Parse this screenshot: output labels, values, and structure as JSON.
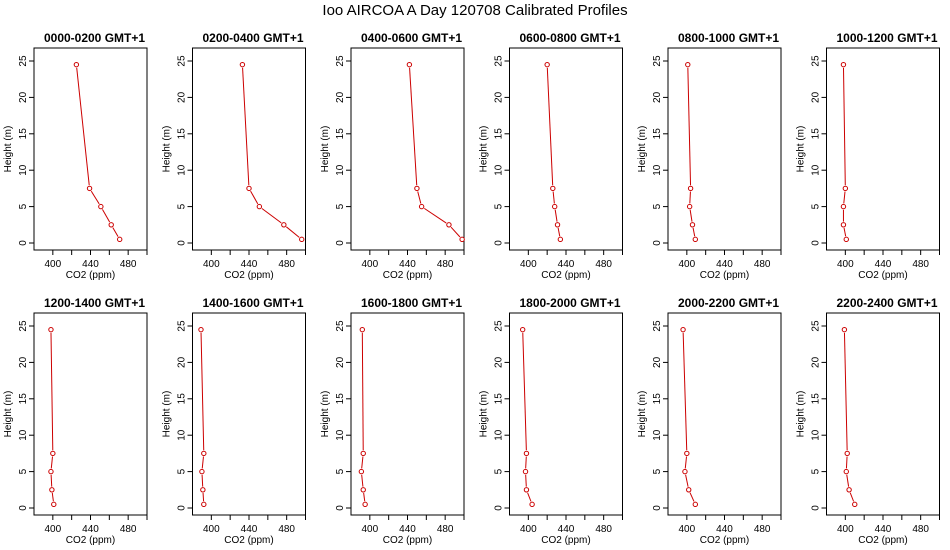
{
  "title": "Ioo AIRCOA A  Day 120708  Calibrated Profiles",
  "chart_data": {
    "type": "line",
    "xlabel": "CO2 (ppm)",
    "ylabel": "Height (m)",
    "xlim": [
      380,
      500
    ],
    "ylim": [
      0,
      25
    ],
    "xticks": [
      400,
      440,
      480
    ],
    "yticks": [
      0,
      5,
      10,
      15,
      20,
      25
    ],
    "grid": false,
    "color": "#cc0000",
    "panels": [
      {
        "title": "0000-0200 GMT+1",
        "points": [
          [
            471,
            0.5
          ],
          [
            462,
            2.5
          ],
          [
            451,
            5.0
          ],
          [
            439,
            7.5
          ],
          [
            425,
            24.5
          ]
        ]
      },
      {
        "title": "0200-0400 GMT+1",
        "points": [
          [
            496,
            0.5
          ],
          [
            477,
            2.5
          ],
          [
            451,
            5.0
          ],
          [
            440,
            7.5
          ],
          [
            433,
            24.5
          ]
        ]
      },
      {
        "title": "0400-0600 GMT+1",
        "points": [
          [
            498,
            0.5
          ],
          [
            484,
            2.5
          ],
          [
            455,
            5.0
          ],
          [
            450,
            7.5
          ],
          [
            442,
            24.5
          ]
        ]
      },
      {
        "title": "0600-0800 GMT+1",
        "points": [
          [
            434,
            0.5
          ],
          [
            431,
            2.5
          ],
          [
            428,
            5.0
          ],
          [
            426,
            7.5
          ],
          [
            420,
            24.5
          ]
        ]
      },
      {
        "title": "0800-1000 GMT+1",
        "points": [
          [
            409,
            0.5
          ],
          [
            406,
            2.5
          ],
          [
            403,
            5.0
          ],
          [
            404,
            7.5
          ],
          [
            401,
            24.5
          ]
        ]
      },
      {
        "title": "1000-1200 GMT+1",
        "points": [
          [
            401,
            0.5
          ],
          [
            398,
            2.5
          ],
          [
            398,
            5.0
          ],
          [
            400,
            7.5
          ],
          [
            398,
            24.5
          ]
        ]
      },
      {
        "title": "1200-1400 GMT+1",
        "points": [
          [
            401,
            0.5
          ],
          [
            399,
            2.5
          ],
          [
            398,
            5.0
          ],
          [
            400,
            7.5
          ],
          [
            398,
            24.5
          ]
        ]
      },
      {
        "title": "1400-1600 GMT+1",
        "points": [
          [
            392,
            0.5
          ],
          [
            391,
            2.5
          ],
          [
            390,
            5.0
          ],
          [
            392,
            7.5
          ],
          [
            389,
            24.5
          ]
        ]
      },
      {
        "title": "1600-1800 GMT+1",
        "points": [
          [
            395,
            0.5
          ],
          [
            393,
            2.5
          ],
          [
            391,
            5.0
          ],
          [
            393,
            7.5
          ],
          [
            392,
            24.5
          ]
        ]
      },
      {
        "title": "1800-2000 GMT+1",
        "points": [
          [
            404,
            0.5
          ],
          [
            398,
            2.5
          ],
          [
            397,
            5.0
          ],
          [
            398,
            7.5
          ],
          [
            394,
            24.5
          ]
        ]
      },
      {
        "title": "2000-2200 GMT+1",
        "points": [
          [
            409,
            0.5
          ],
          [
            402,
            2.5
          ],
          [
            398,
            5.0
          ],
          [
            400,
            7.5
          ],
          [
            396,
            24.5
          ]
        ]
      },
      {
        "title": "2200-2400 GMT+1",
        "points": [
          [
            410,
            0.5
          ],
          [
            404,
            2.5
          ],
          [
            401,
            5.0
          ],
          [
            402,
            7.5
          ],
          [
            399,
            24.5
          ]
        ]
      }
    ]
  }
}
